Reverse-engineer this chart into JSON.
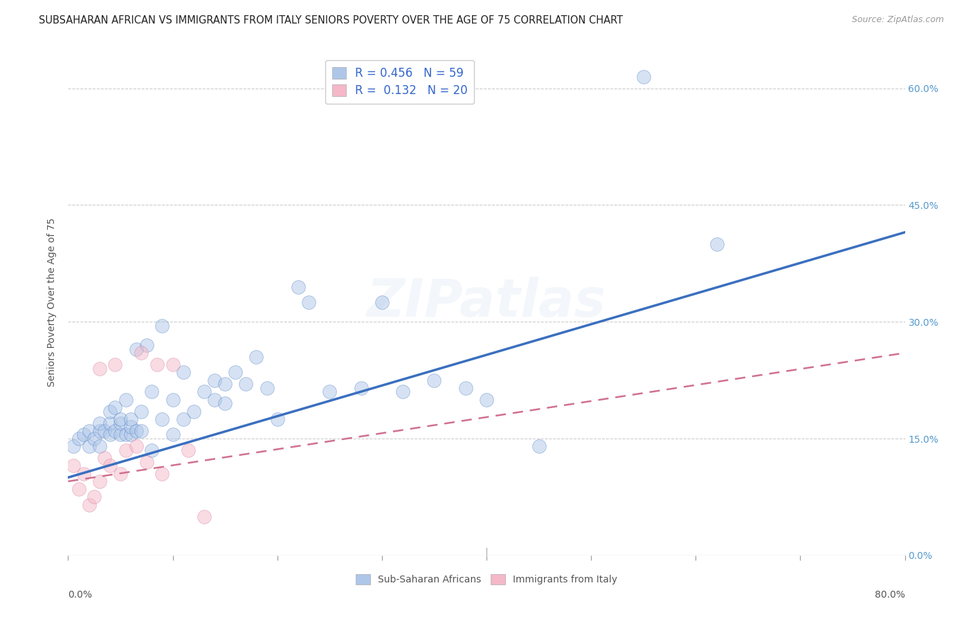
{
  "title": "SUBSAHARAN AFRICAN VS IMMIGRANTS FROM ITALY SENIORS POVERTY OVER THE AGE OF 75 CORRELATION CHART",
  "source": "Source: ZipAtlas.com",
  "ylabel": "Seniors Poverty Over the Age of 75",
  "xlim": [
    0.0,
    0.8
  ],
  "ylim": [
    0.0,
    0.65
  ],
  "watermark": "ZIPatlas",
  "legend_entries": [
    {
      "label_r": "R = 0.456",
      "label_n": "N = 59",
      "color": "#aec6e8",
      "line_color": "#3a6fbf"
    },
    {
      "label_r": "R =  0.132",
      "label_n": "N = 20",
      "color": "#f4b8c8",
      "line_color": "#d07090"
    }
  ],
  "blue_scatter_x": [
    0.005,
    0.01,
    0.015,
    0.02,
    0.02,
    0.025,
    0.03,
    0.03,
    0.03,
    0.035,
    0.04,
    0.04,
    0.04,
    0.045,
    0.045,
    0.05,
    0.05,
    0.05,
    0.055,
    0.055,
    0.06,
    0.06,
    0.06,
    0.065,
    0.065,
    0.07,
    0.07,
    0.075,
    0.08,
    0.08,
    0.09,
    0.09,
    0.1,
    0.1,
    0.11,
    0.11,
    0.12,
    0.13,
    0.14,
    0.14,
    0.15,
    0.15,
    0.16,
    0.17,
    0.18,
    0.19,
    0.2,
    0.22,
    0.23,
    0.25,
    0.28,
    0.3,
    0.32,
    0.35,
    0.38,
    0.4,
    0.45,
    0.55,
    0.62
  ],
  "blue_scatter_y": [
    0.14,
    0.15,
    0.155,
    0.14,
    0.16,
    0.15,
    0.14,
    0.16,
    0.17,
    0.16,
    0.155,
    0.17,
    0.185,
    0.16,
    0.19,
    0.155,
    0.17,
    0.175,
    0.155,
    0.2,
    0.155,
    0.165,
    0.175,
    0.16,
    0.265,
    0.16,
    0.185,
    0.27,
    0.135,
    0.21,
    0.175,
    0.295,
    0.155,
    0.2,
    0.175,
    0.235,
    0.185,
    0.21,
    0.2,
    0.225,
    0.195,
    0.22,
    0.235,
    0.22,
    0.255,
    0.215,
    0.175,
    0.345,
    0.325,
    0.21,
    0.215,
    0.325,
    0.21,
    0.225,
    0.215,
    0.2,
    0.14,
    0.615,
    0.4
  ],
  "pink_scatter_x": [
    0.005,
    0.01,
    0.015,
    0.02,
    0.025,
    0.03,
    0.03,
    0.035,
    0.04,
    0.045,
    0.05,
    0.055,
    0.065,
    0.07,
    0.075,
    0.085,
    0.09,
    0.1,
    0.115,
    0.13
  ],
  "pink_scatter_y": [
    0.115,
    0.085,
    0.105,
    0.065,
    0.075,
    0.095,
    0.24,
    0.125,
    0.115,
    0.245,
    0.105,
    0.135,
    0.14,
    0.26,
    0.12,
    0.245,
    0.105,
    0.245,
    0.135,
    0.05
  ],
  "blue_line_x": [
    0.0,
    0.8
  ],
  "blue_line_y": [
    0.1,
    0.415
  ],
  "pink_line_x": [
    0.0,
    0.8
  ],
  "pink_line_y": [
    0.095,
    0.26
  ],
  "xtick_positions": [
    0.0,
    0.1,
    0.2,
    0.3,
    0.4,
    0.5,
    0.6,
    0.7,
    0.8
  ],
  "ytick_positions": [
    0.0,
    0.15,
    0.3,
    0.45,
    0.6
  ],
  "ytick_labels": [
    "0.0%",
    "15.0%",
    "30.0%",
    "45.0%",
    "60.0%"
  ],
  "background_color": "#ffffff",
  "grid_color": "#cccccc",
  "scatter_size": 200,
  "scatter_alpha": 0.5,
  "title_fontsize": 10.5,
  "source_fontsize": 9,
  "axis_label_fontsize": 10,
  "tick_fontsize": 10,
  "legend_fontsize": 12,
  "watermark_fontsize": 55,
  "watermark_alpha": 0.07,
  "watermark_color": "#5599cc",
  "bottom_legend_labels": [
    "Sub-Saharan Africans",
    "Immigrants from Italy"
  ]
}
